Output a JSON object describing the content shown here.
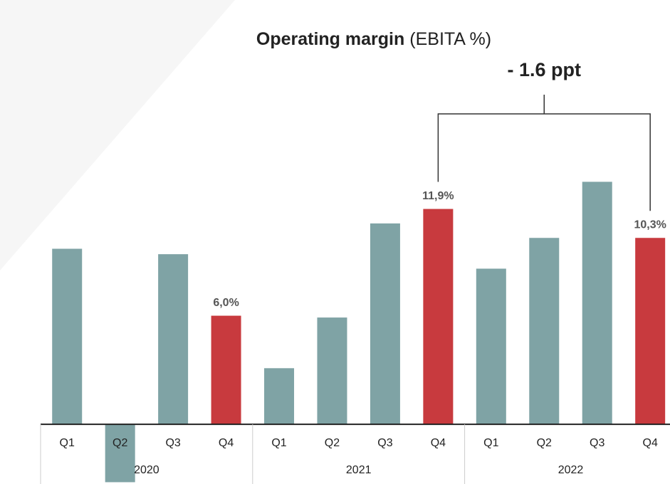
{
  "chart_data": {
    "type": "bar",
    "title": "Operating margin",
    "title_note": "(EBITA %)",
    "categories": [
      "Q1",
      "Q2",
      "Q3",
      "Q4",
      "Q1",
      "Q2",
      "Q3",
      "Q4",
      "Q1",
      "Q2",
      "Q3",
      "Q4"
    ],
    "groups": [
      "2020",
      "2021",
      "2022"
    ],
    "values": [
      9.7,
      -3.2,
      9.4,
      6.0,
      3.1,
      5.9,
      11.1,
      11.9,
      8.6,
      10.3,
      13.4,
      10.3
    ],
    "value_labels": [
      null,
      null,
      null,
      "6,0%",
      null,
      null,
      null,
      "11,9%",
      null,
      null,
      null,
      "10,3%"
    ],
    "colors": [
      "#7fa3a5",
      "#7fa3a5",
      "#7fa3a5",
      "#c83a3e",
      "#7fa3a5",
      "#7fa3a5",
      "#7fa3a5",
      "#c83a3e",
      "#7fa3a5",
      "#7fa3a5",
      "#7fa3a5",
      "#c83a3e"
    ],
    "ylim": [
      -3.3,
      14.4
    ],
    "annotation": {
      "text": "- 1.6 ppt",
      "from": 7,
      "to": 11
    }
  }
}
